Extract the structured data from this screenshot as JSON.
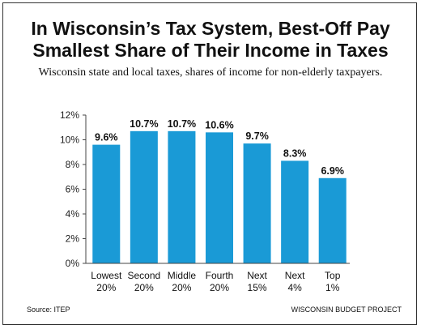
{
  "chart_data": {
    "type": "bar",
    "title_lines": [
      "In Wisconsin’s Tax System, Best-Off Pay",
      "Smallest Share of Their Income in Taxes"
    ],
    "subtitle": "Wisconsin state and local taxes, shares of income for non-elderly taxpayers.",
    "categories": [
      [
        "Lowest",
        "20%"
      ],
      [
        "Second",
        "20%"
      ],
      [
        "Middle",
        "20%"
      ],
      [
        "Fourth",
        "20%"
      ],
      [
        "Next",
        "15%"
      ],
      [
        "Next",
        "4%"
      ],
      [
        "Top",
        "1%"
      ]
    ],
    "values": [
      9.6,
      10.7,
      10.7,
      10.6,
      9.7,
      8.3,
      6.9
    ],
    "data_labels": [
      "9.6%",
      "10.7%",
      "10.7%",
      "10.6%",
      "9.7%",
      "8.3%",
      "6.9%"
    ],
    "y_ticks": [
      "0%",
      "2%",
      "4%",
      "6%",
      "8%",
      "10%",
      "12%"
    ],
    "ylim": [
      0,
      12
    ],
    "grid": false,
    "bar_color": "#1a9ad6"
  },
  "footer": {
    "source": "Source: ITEP",
    "org": "WISCONSIN BUDGET PROJECT"
  }
}
